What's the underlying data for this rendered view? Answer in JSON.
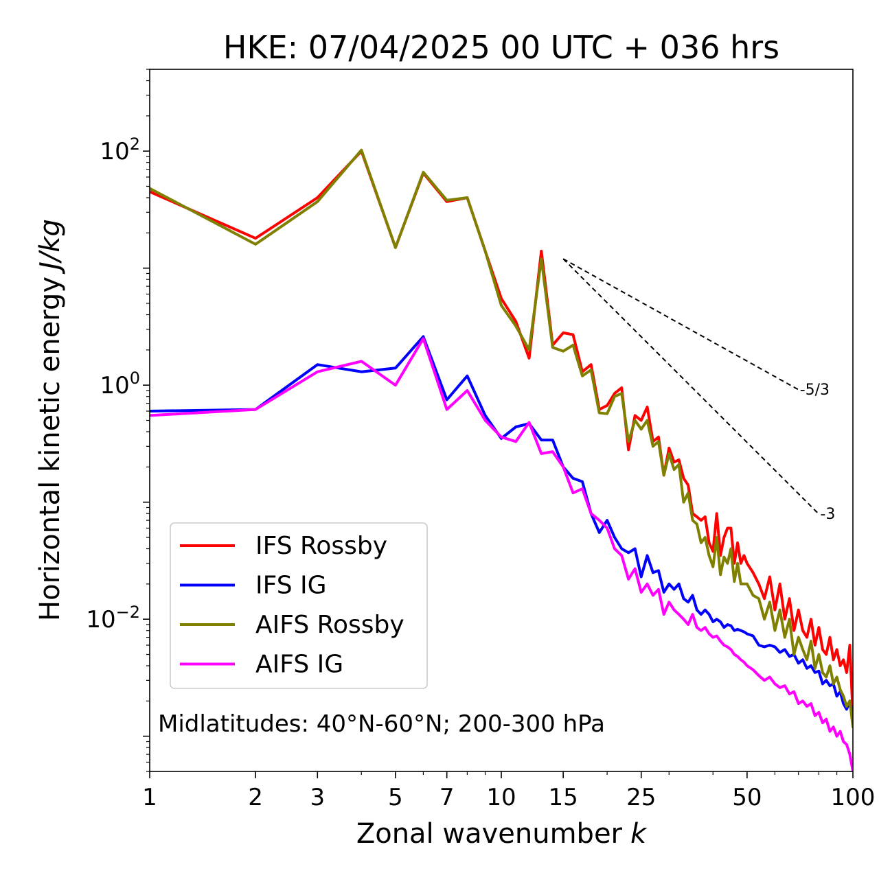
{
  "chart_data": {
    "type": "line",
    "title": "HKE: 07/04/2025 00 UTC + 036 hrs",
    "xlabel": "Zonal wavenumber",
    "xlabel_var": "k",
    "ylabel": "Horizontal kinetic energy",
    "ylabel_unit": "J/kg",
    "x_scale": "log",
    "y_scale": "log",
    "xlim": [
      1,
      100
    ],
    "ylim": [
      0.0005,
      500
    ],
    "x_ticks": [
      1,
      2,
      3,
      5,
      7,
      10,
      15,
      25,
      50,
      100
    ],
    "x_tick_labels": [
      "1",
      "2",
      "3",
      "5",
      "7",
      "10",
      "15",
      "25",
      "50",
      "100"
    ],
    "y_ticks": [
      {
        "value": 100,
        "base": "10",
        "exp": "2"
      },
      {
        "value": 1,
        "base": "10",
        "exp": "0"
      },
      {
        "value": 0.01,
        "base": "10",
        "exp": "−2"
      }
    ],
    "grid": false,
    "legend_position": "lower-left",
    "annotation": "Midlatitudes: 40°N-60°N; 200-300 hPa",
    "reference_lines": [
      {
        "label": "-5/3",
        "x": [
          15,
          70
        ],
        "y": [
          12.0,
          0.915
        ]
      },
      {
        "label": "-3",
        "x": [
          15,
          80
        ],
        "y": [
          12.0,
          0.0791
        ]
      }
    ],
    "series": [
      {
        "name": "IFS Rossby",
        "color": "#ff0000",
        "x": [
          1,
          2,
          3,
          4,
          5,
          6,
          7,
          8,
          9,
          10,
          11,
          12,
          13,
          14,
          15,
          16,
          17,
          18,
          19,
          20,
          21,
          22,
          23,
          24,
          25,
          26,
          27,
          28,
          29,
          30,
          31,
          32,
          33,
          34,
          35,
          36,
          37,
          38,
          39,
          40,
          41,
          42,
          43,
          44,
          45,
          46,
          47,
          48,
          49,
          50,
          52,
          54,
          56,
          58,
          60,
          62,
          64,
          66,
          68,
          70,
          72,
          74,
          76,
          78,
          80,
          82,
          84,
          86,
          88,
          90,
          92,
          94,
          96,
          98,
          100
        ],
        "y": [
          45,
          18,
          40,
          100,
          15,
          65,
          37,
          40,
          14,
          5.5,
          3.5,
          1.7,
          14,
          2.2,
          2.8,
          2.7,
          1.3,
          1.5,
          0.62,
          0.67,
          0.85,
          0.95,
          0.28,
          0.55,
          0.5,
          0.65,
          0.33,
          0.36,
          0.17,
          0.29,
          0.22,
          0.23,
          0.16,
          0.14,
          0.08,
          0.075,
          0.07,
          0.075,
          0.045,
          0.038,
          0.08,
          0.035,
          0.05,
          0.06,
          0.06,
          0.03,
          0.045,
          0.03,
          0.035,
          0.03,
          0.025,
          0.02,
          0.015,
          0.023,
          0.012,
          0.02,
          0.01,
          0.015,
          0.008,
          0.012,
          0.008,
          0.007,
          0.01,
          0.006,
          0.0085,
          0.0055,
          0.005,
          0.007,
          0.0045,
          0.0055,
          0.004,
          0.0045,
          0.0035,
          0.006,
          0.0015
        ]
      },
      {
        "name": "IFS IG",
        "color": "#0000ff",
        "x": [
          1,
          2,
          3,
          4,
          5,
          6,
          7,
          8,
          9,
          10,
          11,
          12,
          13,
          14,
          15,
          16,
          17,
          18,
          19,
          20,
          21,
          22,
          23,
          24,
          25,
          26,
          27,
          28,
          29,
          30,
          31,
          32,
          33,
          34,
          35,
          36,
          37,
          38,
          39,
          40,
          41,
          42,
          43,
          44,
          45,
          46,
          47,
          48,
          49,
          50,
          52,
          54,
          56,
          58,
          60,
          62,
          64,
          66,
          68,
          70,
          72,
          74,
          76,
          78,
          80,
          82,
          84,
          86,
          88,
          90,
          92,
          94,
          96,
          98,
          100
        ],
        "y": [
          0.6,
          0.62,
          1.5,
          1.3,
          1.4,
          2.6,
          0.75,
          1.2,
          0.55,
          0.35,
          0.44,
          0.47,
          0.34,
          0.34,
          0.2,
          0.16,
          0.15,
          0.08,
          0.055,
          0.07,
          0.05,
          0.04,
          0.037,
          0.04,
          0.023,
          0.035,
          0.025,
          0.026,
          0.017,
          0.02,
          0.018,
          0.02,
          0.015,
          0.014,
          0.016,
          0.012,
          0.011,
          0.012,
          0.011,
          0.0095,
          0.01,
          0.0095,
          0.0085,
          0.009,
          0.0088,
          0.008,
          0.0082,
          0.008,
          0.0078,
          0.0075,
          0.0072,
          0.006,
          0.0058,
          0.006,
          0.0058,
          0.0052,
          0.0055,
          0.0048,
          0.005,
          0.0042,
          0.0045,
          0.0038,
          0.004,
          0.0035,
          0.0036,
          0.0028,
          0.003,
          0.0027,
          0.0028,
          0.0022,
          0.0024,
          0.0019,
          0.0017,
          0.002,
          0.0013
        ]
      },
      {
        "name": "AIFS Rossby",
        "color": "#808000",
        "x": [
          1,
          2,
          3,
          4,
          5,
          6,
          7,
          8,
          9,
          10,
          11,
          12,
          13,
          14,
          15,
          16,
          17,
          18,
          19,
          20,
          21,
          22,
          23,
          24,
          25,
          26,
          27,
          28,
          29,
          30,
          31,
          32,
          33,
          34,
          35,
          36,
          37,
          38,
          39,
          40,
          41,
          42,
          43,
          44,
          45,
          46,
          47,
          48,
          49,
          50,
          52,
          54,
          56,
          58,
          60,
          62,
          64,
          66,
          68,
          70,
          72,
          74,
          76,
          78,
          80,
          82,
          84,
          86,
          88,
          90,
          92,
          94,
          96,
          98,
          100
        ],
        "y": [
          48,
          16,
          37,
          102,
          15,
          66,
          38,
          40,
          14,
          4.8,
          3.2,
          2,
          12,
          2.1,
          1.95,
          2.2,
          1.2,
          1.35,
          0.58,
          0.57,
          0.8,
          0.85,
          0.33,
          0.5,
          0.42,
          0.5,
          0.3,
          0.33,
          0.17,
          0.26,
          0.19,
          0.21,
          0.1,
          0.12,
          0.07,
          0.065,
          0.045,
          0.05,
          0.035,
          0.028,
          0.05,
          0.024,
          0.034,
          0.03,
          0.04,
          0.021,
          0.03,
          0.02,
          0.02,
          0.02,
          0.016,
          0.015,
          0.01,
          0.014,
          0.008,
          0.012,
          0.007,
          0.01,
          0.005,
          0.007,
          0.0055,
          0.0045,
          0.0065,
          0.0038,
          0.005,
          0.0035,
          0.0032,
          0.004,
          0.0028,
          0.0032,
          0.0025,
          0.0022,
          0.0018,
          0.002,
          0.0012
        ]
      },
      {
        "name": "AIFS IG",
        "color": "#ff00ff",
        "x": [
          1,
          2,
          3,
          4,
          5,
          6,
          7,
          8,
          9,
          10,
          11,
          12,
          13,
          14,
          15,
          16,
          17,
          18,
          19,
          20,
          21,
          22,
          23,
          24,
          25,
          26,
          27,
          28,
          29,
          30,
          31,
          32,
          33,
          34,
          35,
          36,
          37,
          38,
          39,
          40,
          41,
          42,
          43,
          44,
          45,
          46,
          47,
          48,
          49,
          50,
          52,
          54,
          56,
          58,
          60,
          62,
          64,
          66,
          68,
          70,
          72,
          74,
          76,
          78,
          80,
          82,
          84,
          86,
          88,
          90,
          92,
          94,
          96,
          98,
          100
        ],
        "y": [
          0.55,
          0.62,
          1.3,
          1.6,
          1.0,
          2.5,
          0.62,
          0.9,
          0.5,
          0.36,
          0.33,
          0.48,
          0.26,
          0.27,
          0.2,
          0.12,
          0.13,
          0.08,
          0.07,
          0.06,
          0.04,
          0.035,
          0.022,
          0.027,
          0.017,
          0.02,
          0.016,
          0.018,
          0.011,
          0.014,
          0.012,
          0.011,
          0.01,
          0.009,
          0.011,
          0.0085,
          0.008,
          0.0085,
          0.0075,
          0.007,
          0.0072,
          0.0065,
          0.006,
          0.0058,
          0.0055,
          0.005,
          0.0048,
          0.0045,
          0.0043,
          0.004,
          0.0037,
          0.0033,
          0.003,
          0.0032,
          0.0028,
          0.0026,
          0.0027,
          0.0023,
          0.0024,
          0.0019,
          0.002,
          0.0018,
          0.0019,
          0.0015,
          0.0016,
          0.0013,
          0.0014,
          0.0011,
          0.0012,
          0.001,
          0.0011,
          0.0009,
          0.00085,
          0.0007,
          0.0005
        ]
      }
    ]
  }
}
